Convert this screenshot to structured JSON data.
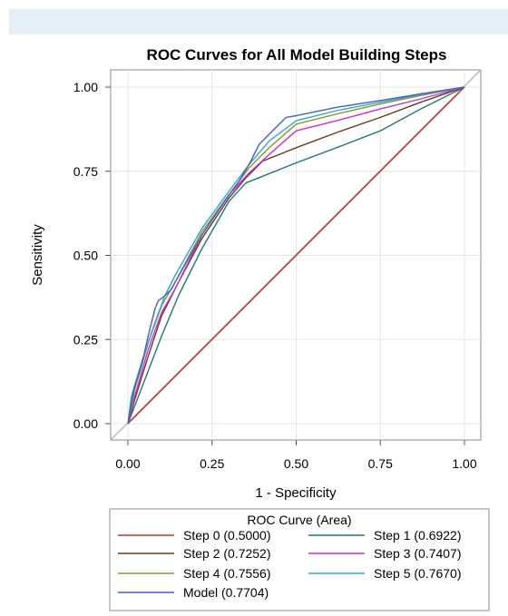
{
  "chart_data": {
    "type": "line",
    "title": "ROC Curves for All Model Building Steps",
    "xlabel": "1 - Specificity",
    "ylabel": "Sensitivity",
    "xlim": [
      0,
      1
    ],
    "ylim": [
      0,
      1
    ],
    "x_ticks": [
      "0.00",
      "0.25",
      "0.50",
      "0.75",
      "1.00"
    ],
    "y_ticks": [
      "0.00",
      "0.25",
      "0.50",
      "0.75",
      "1.00"
    ],
    "grid": true,
    "diagonal_reference": true,
    "legend": {
      "title": "ROC Curve (Area)",
      "placement": "bottom",
      "columns": 2
    },
    "series": [
      {
        "name": "Step 0",
        "area": "(0.5000)",
        "color": "#c0392b",
        "points": [
          [
            0,
            0
          ],
          [
            1,
            1
          ]
        ]
      },
      {
        "name": "Step 1",
        "area": "(0.6922)",
        "color": "#1f7a74",
        "points": [
          [
            0,
            0
          ],
          [
            0.05,
            0.13
          ],
          [
            0.1,
            0.26
          ],
          [
            0.15,
            0.38
          ],
          [
            0.22,
            0.52
          ],
          [
            0.3,
            0.66
          ],
          [
            0.35,
            0.715
          ],
          [
            0.4,
            0.735
          ],
          [
            0.5,
            0.775
          ],
          [
            0.62,
            0.82
          ],
          [
            0.75,
            0.87
          ],
          [
            0.87,
            0.935
          ],
          [
            1,
            1
          ]
        ]
      },
      {
        "name": "Step 2",
        "area": "(0.7252)",
        "color": "#6b3a22",
        "points": [
          [
            0,
            0
          ],
          [
            0.02,
            0.07
          ],
          [
            0.06,
            0.2
          ],
          [
            0.1,
            0.32
          ],
          [
            0.15,
            0.42
          ],
          [
            0.22,
            0.55
          ],
          [
            0.3,
            0.67
          ],
          [
            0.35,
            0.73
          ],
          [
            0.4,
            0.78
          ],
          [
            0.5,
            0.82
          ],
          [
            0.62,
            0.865
          ],
          [
            0.75,
            0.91
          ],
          [
            0.87,
            0.955
          ],
          [
            1,
            1
          ]
        ]
      },
      {
        "name": "Step 3",
        "area": "(0.7407)",
        "color": "#c832c8",
        "points": [
          [
            0,
            0
          ],
          [
            0.02,
            0.08
          ],
          [
            0.06,
            0.22
          ],
          [
            0.1,
            0.33
          ],
          [
            0.14,
            0.4
          ],
          [
            0.22,
            0.56
          ],
          [
            0.3,
            0.68
          ],
          [
            0.36,
            0.745
          ],
          [
            0.42,
            0.8
          ],
          [
            0.5,
            0.87
          ],
          [
            0.62,
            0.9
          ],
          [
            0.75,
            0.935
          ],
          [
            0.87,
            0.965
          ],
          [
            1,
            1
          ]
        ]
      },
      {
        "name": "Step 4",
        "area": "(0.7556)",
        "color": "#8a9a28",
        "points": [
          [
            0,
            0
          ],
          [
            0.02,
            0.1
          ],
          [
            0.06,
            0.24
          ],
          [
            0.1,
            0.35
          ],
          [
            0.14,
            0.42
          ],
          [
            0.22,
            0.57
          ],
          [
            0.3,
            0.68
          ],
          [
            0.36,
            0.76
          ],
          [
            0.42,
            0.82
          ],
          [
            0.5,
            0.89
          ],
          [
            0.62,
            0.92
          ],
          [
            0.75,
            0.95
          ],
          [
            0.87,
            0.975
          ],
          [
            1,
            1
          ]
        ]
      },
      {
        "name": "Step 5",
        "area": "(0.7670)",
        "color": "#2aa6d8",
        "points": [
          [
            0,
            0
          ],
          [
            0.01,
            0.08
          ],
          [
            0.04,
            0.18
          ],
          [
            0.08,
            0.3
          ],
          [
            0.11,
            0.38
          ],
          [
            0.14,
            0.44
          ],
          [
            0.22,
            0.58
          ],
          [
            0.3,
            0.69
          ],
          [
            0.36,
            0.77
          ],
          [
            0.42,
            0.84
          ],
          [
            0.5,
            0.9
          ],
          [
            0.62,
            0.93
          ],
          [
            0.75,
            0.955
          ],
          [
            0.87,
            0.978
          ],
          [
            1,
            1
          ]
        ]
      },
      {
        "name": "Model",
        "area": "(0.7704)",
        "color": "#4a5cc8",
        "points": [
          [
            0,
            0
          ],
          [
            0.01,
            0.06
          ],
          [
            0.02,
            0.11
          ],
          [
            0.04,
            0.17
          ],
          [
            0.06,
            0.26
          ],
          [
            0.08,
            0.34
          ],
          [
            0.09,
            0.365
          ],
          [
            0.11,
            0.38
          ],
          [
            0.13,
            0.4
          ],
          [
            0.14,
            0.42
          ],
          [
            0.22,
            0.56
          ],
          [
            0.28,
            0.65
          ],
          [
            0.33,
            0.72
          ],
          [
            0.36,
            0.77
          ],
          [
            0.39,
            0.83
          ],
          [
            0.42,
            0.86
          ],
          [
            0.47,
            0.91
          ],
          [
            0.5,
            0.915
          ],
          [
            0.62,
            0.94
          ],
          [
            0.75,
            0.96
          ],
          [
            0.87,
            0.98
          ],
          [
            1,
            1
          ]
        ]
      }
    ]
  }
}
